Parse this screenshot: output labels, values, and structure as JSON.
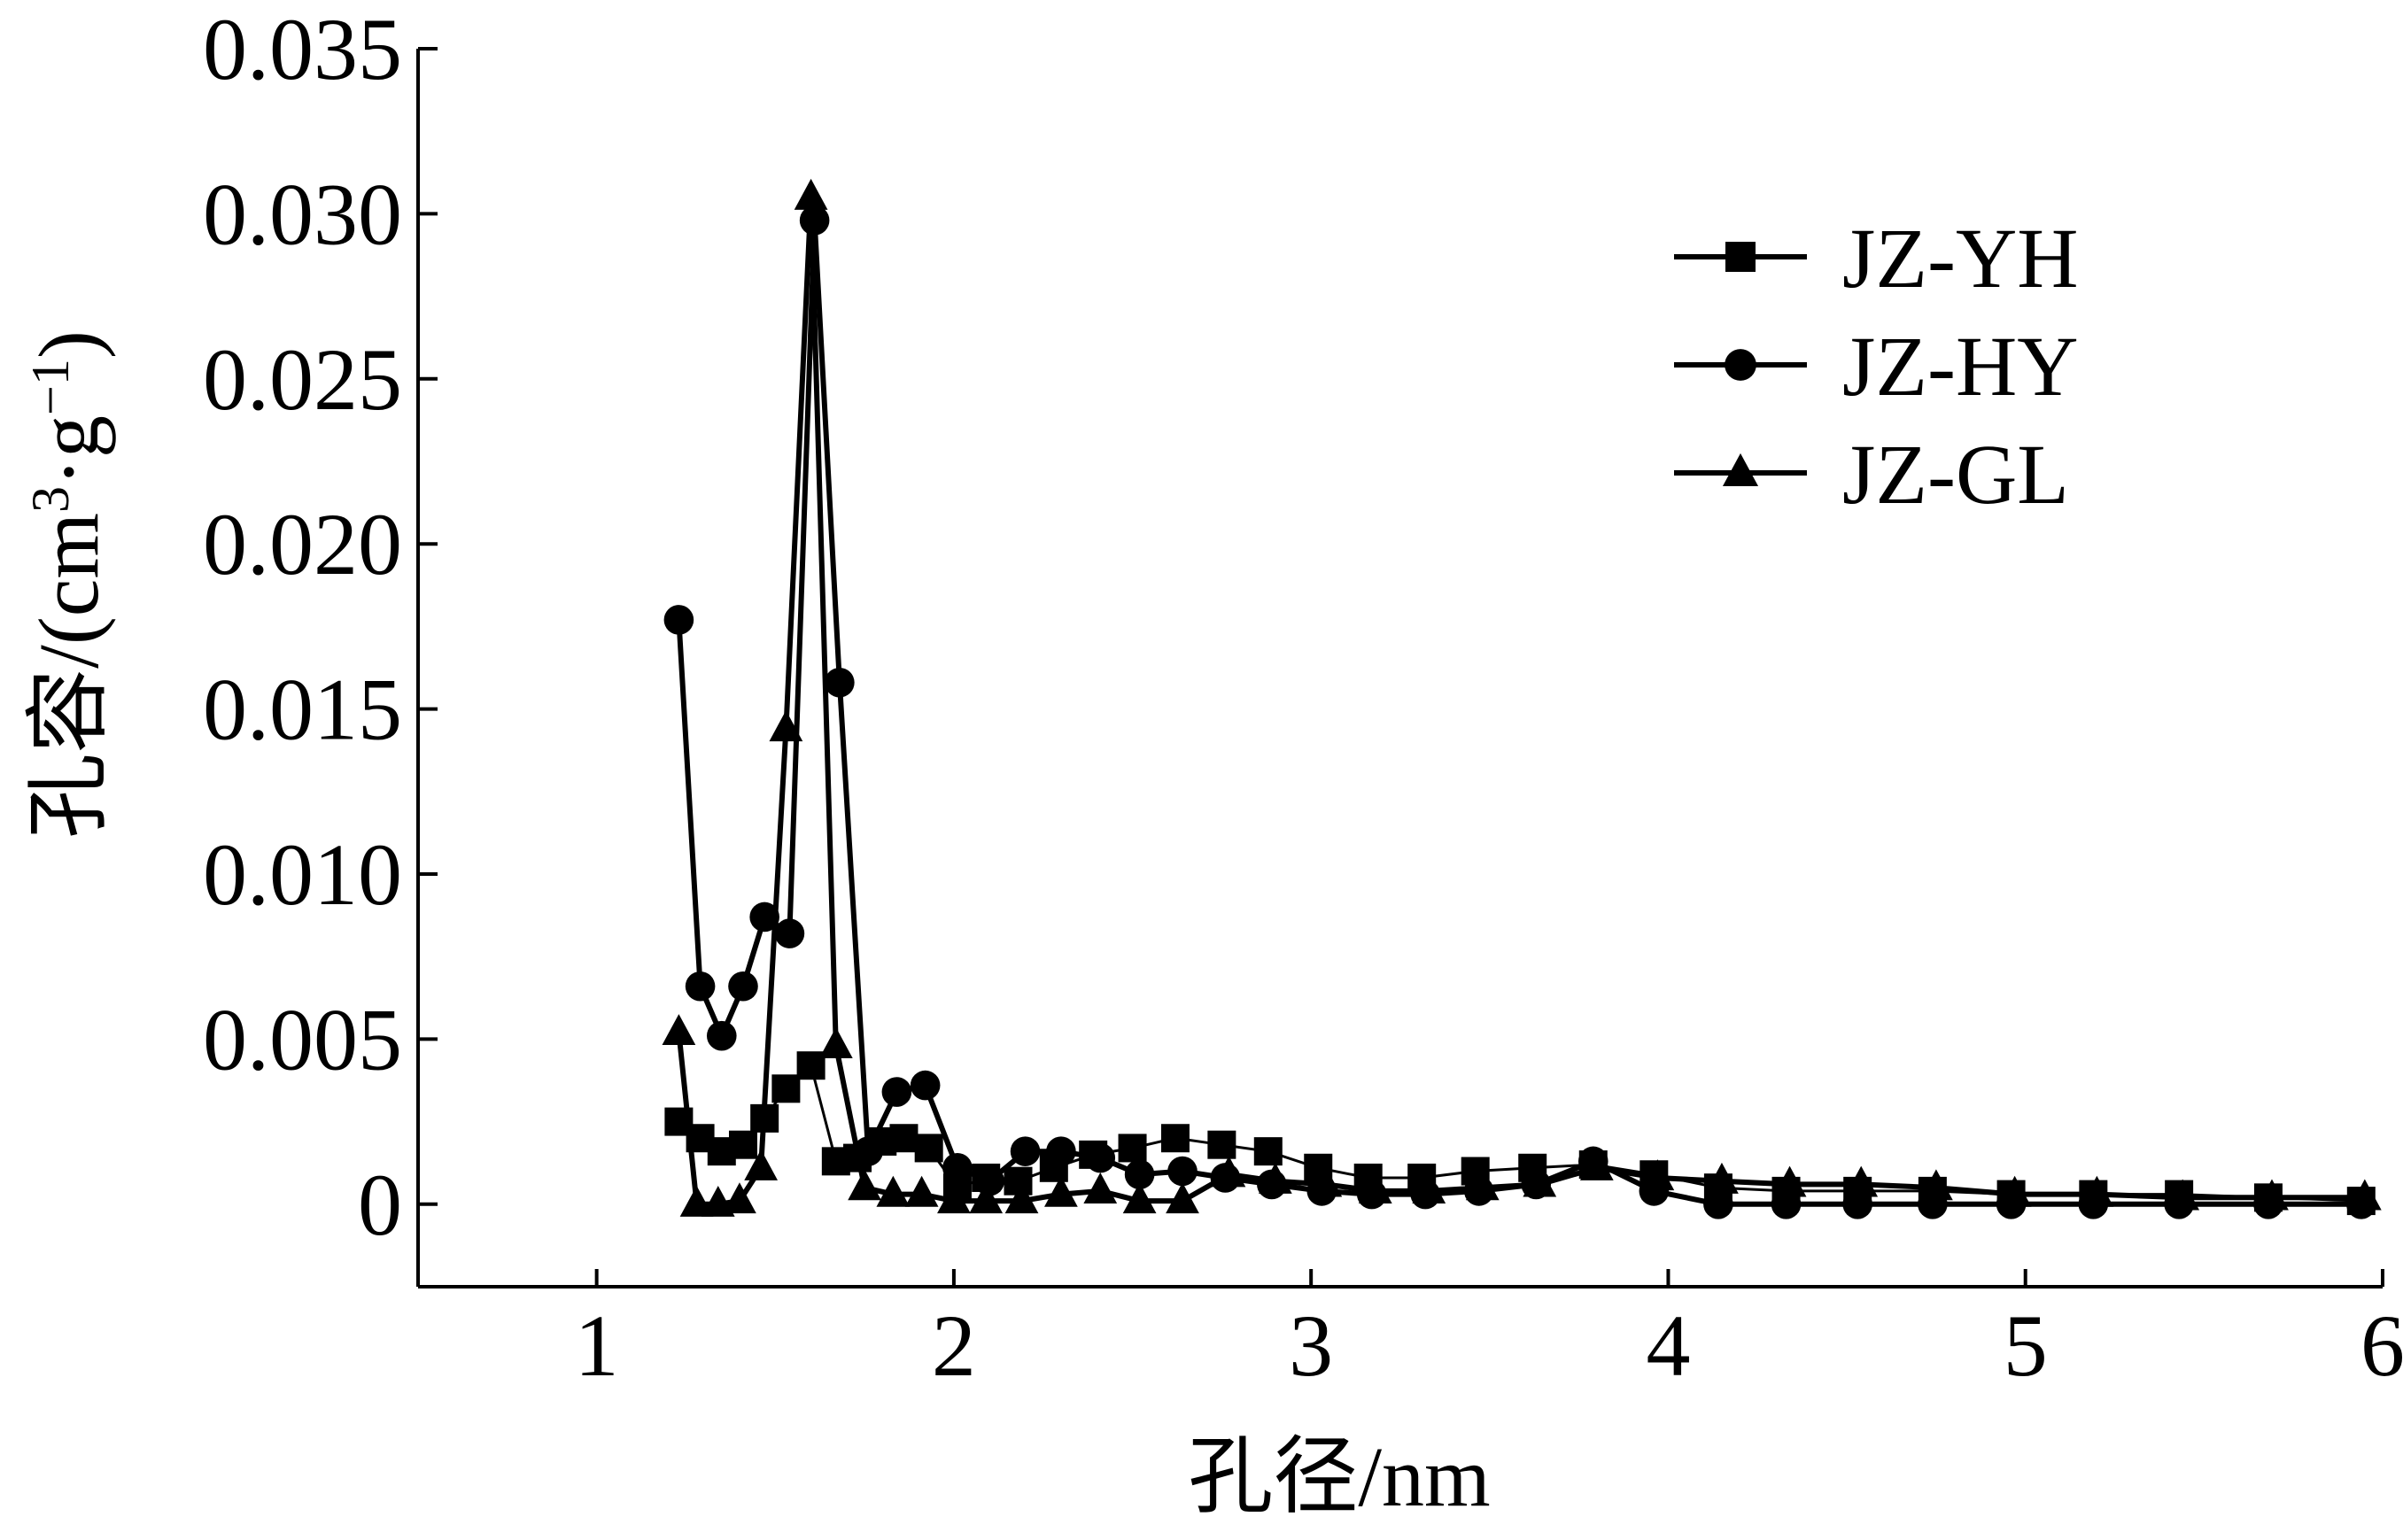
{
  "chart_data": {
    "type": "line",
    "xlabel": "孔径/nm",
    "ylabel_main": "孔容/(cm",
    "ylabel_sup1": "3",
    "ylabel_mid": "·g",
    "ylabel_sup2": "−1",
    "ylabel_end": ")",
    "xlim": [
      0.5,
      6
    ],
    "ylim": [
      -0.0025,
      0.035
    ],
    "x_ticks": [
      1,
      2,
      3,
      4,
      5,
      6
    ],
    "x_tick_labels": [
      "1",
      "2",
      "3",
      "4",
      "5",
      "6"
    ],
    "y_ticks": [
      0,
      0.005,
      0.01,
      0.015,
      0.02,
      0.025,
      0.03,
      0.035
    ],
    "y_tick_labels": [
      "0",
      "0.005",
      "0.010",
      "0.015",
      "0.020",
      "0.025",
      "0.030",
      "0.035"
    ],
    "legend_position": "top-right",
    "series": [
      {
        "name": "JZ-YH",
        "marker": "square",
        "x": [
          1.23,
          1.29,
          1.35,
          1.41,
          1.47,
          1.53,
          1.6,
          1.67,
          1.73,
          1.8,
          1.86,
          1.93,
          2.01,
          2.09,
          2.18,
          2.28,
          2.39,
          2.5,
          2.62,
          2.75,
          2.88,
          3.02,
          3.16,
          3.31,
          3.46,
          3.62,
          3.79,
          3.96,
          4.14,
          4.33,
          4.53,
          4.74,
          4.96,
          5.19,
          5.43,
          5.68,
          5.94
        ],
        "y": [
          0.0025,
          0.002,
          0.0016,
          0.0018,
          0.0026,
          0.0035,
          0.0042,
          0.0013,
          0.0014,
          0.0019,
          0.002,
          0.0017,
          0.0005,
          0.0008,
          0.0007,
          0.0011,
          0.0015,
          0.0017,
          0.002,
          0.0018,
          0.0016,
          0.0011,
          0.0008,
          0.0008,
          0.001,
          0.0011,
          0.0012,
          0.0009,
          0.0005,
          0.0004,
          0.0004,
          0.0004,
          0.0003,
          0.0003,
          0.0003,
          0.0002,
          0.0001
        ]
      },
      {
        "name": "JZ-HY",
        "marker": "circle",
        "x": [
          1.23,
          1.29,
          1.35,
          1.41,
          1.47,
          1.54,
          1.61,
          1.68,
          1.76,
          1.84,
          1.92,
          2.01,
          2.1,
          2.2,
          2.3,
          2.41,
          2.52,
          2.64,
          2.76,
          2.89,
          3.03,
          3.17,
          3.32,
          3.47,
          3.63,
          3.79,
          3.96,
          4.14,
          4.33,
          4.53,
          4.74,
          4.96,
          5.19,
          5.43,
          5.68,
          5.94
        ],
        "y": [
          0.0177,
          0.0066,
          0.0051,
          0.0066,
          0.0087,
          0.0082,
          0.0298,
          0.0158,
          0.0016,
          0.0034,
          0.0036,
          0.0011,
          0.0007,
          0.0016,
          0.0016,
          0.0014,
          0.0009,
          0.001,
          0.0008,
          0.0006,
          0.0004,
          0.0003,
          0.0003,
          0.0004,
          0.0006,
          0.0013,
          0.0004,
          0.0,
          0.0,
          0.0,
          0.0,
          0.0,
          0.0,
          0.0,
          0.0,
          0.0
        ]
      },
      {
        "name": "JZ-GL",
        "marker": "triangle",
        "x": [
          1.23,
          1.28,
          1.34,
          1.4,
          1.46,
          1.53,
          1.6,
          1.67,
          1.75,
          1.83,
          1.91,
          2.0,
          2.09,
          2.19,
          2.3,
          2.41,
          2.52,
          2.64,
          2.77,
          2.9,
          3.04,
          3.18,
          3.33,
          3.48,
          3.64,
          3.8,
          3.97,
          4.15,
          4.34,
          4.54,
          4.75,
          4.97,
          5.2,
          5.44,
          5.69,
          5.95
        ],
        "y": [
          0.0052,
          0.0,
          0.0,
          0.0001,
          0.0011,
          0.0144,
          0.0305,
          0.0048,
          0.0005,
          0.0003,
          0.0003,
          0.0001,
          0.0001,
          0.0001,
          0.0003,
          0.0004,
          0.0001,
          0.0001,
          0.0009,
          0.0007,
          0.0006,
          0.0004,
          0.0004,
          0.0005,
          0.0006,
          0.0011,
          0.0008,
          0.0007,
          0.0006,
          0.0006,
          0.0005,
          0.0003,
          0.0003,
          0.0002,
          0.0002,
          0.0002
        ]
      }
    ]
  }
}
